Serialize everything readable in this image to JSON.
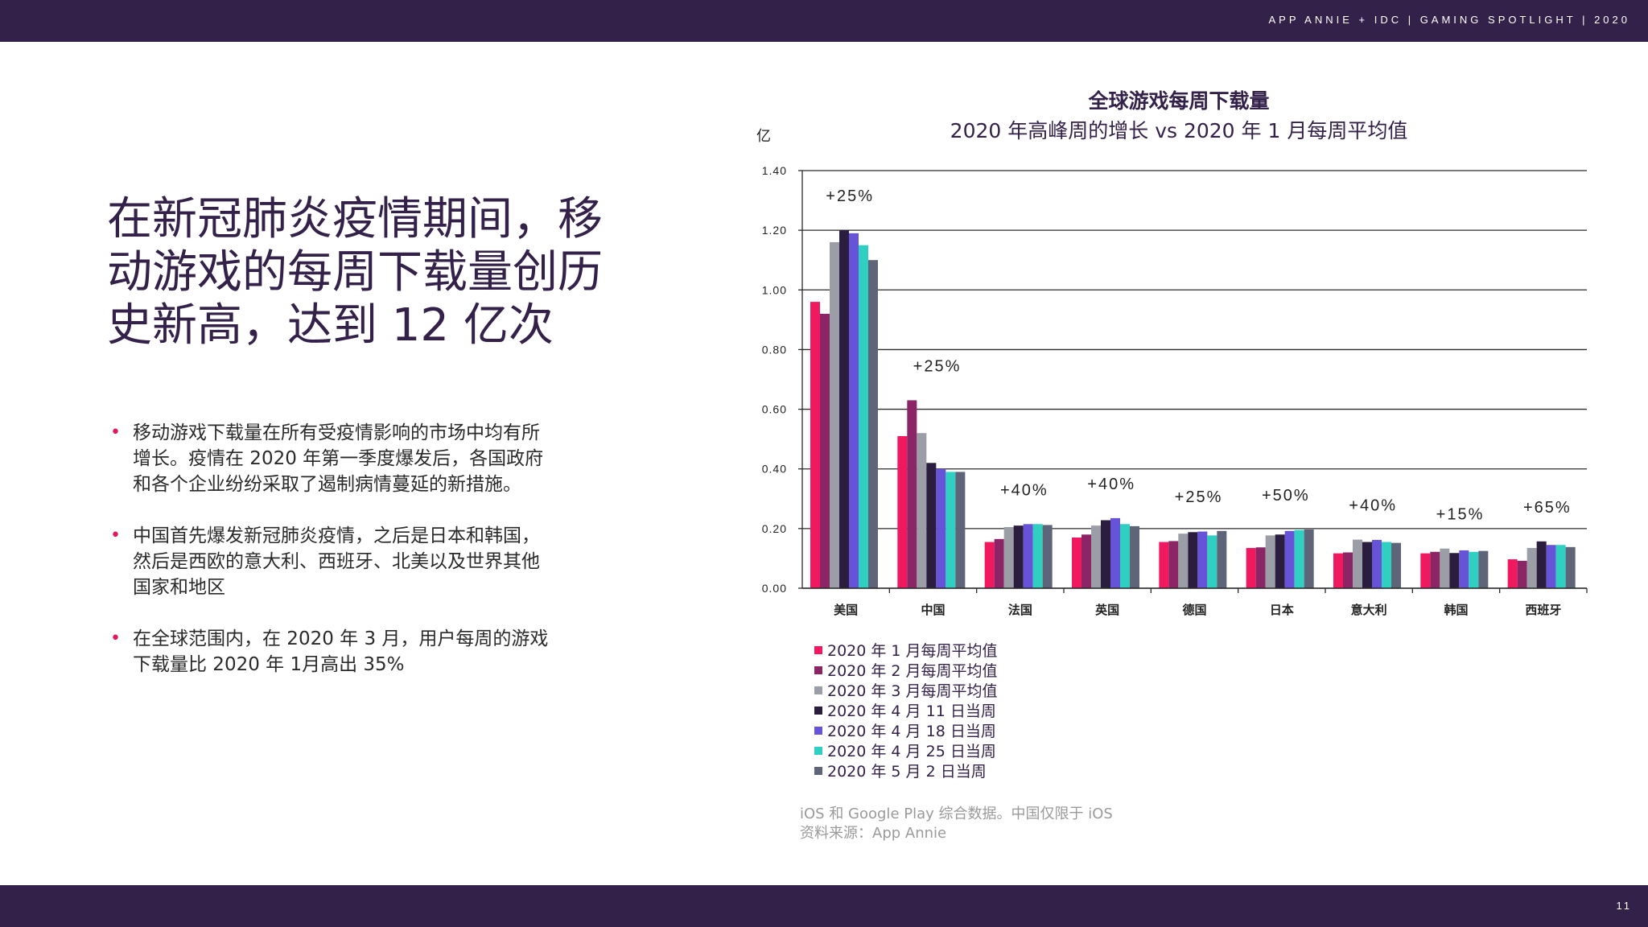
{
  "header": {
    "text": "APP ANNIE + IDC  |   GAMING SPOTLIGHT   |  2020"
  },
  "headline": "在新冠肺炎疫情期间，移动游戏的每周下载量创历史新高，达到 12 亿次",
  "bullets": [
    {
      "text": "移动游戏下载量在所有受疫情影响的市场中均有所\n增长。疫情在 2020 年第一季度爆发后，各国政府\n和各个企业纷纷采取了遏制病情蔓延的新措施。"
    },
    {
      "text": "中国首先爆发新冠肺炎疫情，之后是日本和韩国，\n然后是西欧的意大利、西班牙、北美以及世界其他\n国家和地区"
    },
    {
      "text": "在全球范围内，在 2020 年 3 月，用户每周的游戏\n下载量比 2020 年 1月高出 35%"
    }
  ],
  "bullet_marker": "•",
  "page_number": "11",
  "footnote": {
    "line1": "iOS 和 Google Play 综合数据。中国仅限于 iOS",
    "line2": "资料来源：App Annie"
  },
  "chart_data": {
    "type": "bar",
    "title": "全球游戏每周下载量",
    "subtitle": "2020 年高峰周的增长 vs 2020 年 1 月每周平均值",
    "ylabel": "亿",
    "xlabel": "",
    "ylim": [
      0,
      1.4
    ],
    "yticks": [
      "0.00",
      "0.20",
      "0.40",
      "0.60",
      "0.80",
      "1.00",
      "1.20",
      "1.40"
    ],
    "grid": true,
    "legend_position": "bottom-left",
    "categories": [
      "美国",
      "中国",
      "法国",
      "英国",
      "德国",
      "日本",
      "意大利",
      "韩国",
      "西班牙"
    ],
    "annotations": [
      "+25%",
      "+25%",
      "+40%",
      "+40%",
      "+25%",
      "+50%",
      "+40%",
      "+15%",
      "+65%"
    ],
    "series": [
      {
        "name": "2020 年 1 月每周平均值",
        "color": "#f0195f",
        "values": [
          0.96,
          0.51,
          0.155,
          0.17,
          0.155,
          0.135,
          0.117,
          0.117,
          0.097
        ]
      },
      {
        "name": "2020 年 2 月每周平均值",
        "color": "#8c2566",
        "values": [
          0.92,
          0.63,
          0.165,
          0.18,
          0.158,
          0.137,
          0.12,
          0.122,
          0.092
        ]
      },
      {
        "name": "2020 年 3 月每周平均值",
        "color": "#9b9ea6",
        "values": [
          1.16,
          0.52,
          0.205,
          0.21,
          0.183,
          0.177,
          0.163,
          0.133,
          0.135
        ]
      },
      {
        "name": "2020 年 4 月 11 日当周",
        "color": "#2a1d3d",
        "values": [
          1.2,
          0.42,
          0.21,
          0.228,
          0.188,
          0.18,
          0.155,
          0.118,
          0.157
        ]
      },
      {
        "name": "2020 年 4 月 18 日当周",
        "color": "#6753d8",
        "values": [
          1.19,
          0.4,
          0.215,
          0.235,
          0.19,
          0.192,
          0.162,
          0.127,
          0.145
        ]
      },
      {
        "name": "2020 年 4 月 25 日当周",
        "color": "#2fcfc1",
        "values": [
          1.15,
          0.39,
          0.215,
          0.215,
          0.177,
          0.195,
          0.155,
          0.122,
          0.145
        ]
      },
      {
        "name": "2020 年 5 月 2 日当周",
        "color": "#5e6578",
        "values": [
          1.1,
          0.39,
          0.212,
          0.208,
          0.192,
          0.197,
          0.152,
          0.125,
          0.138
        ]
      }
    ]
  }
}
